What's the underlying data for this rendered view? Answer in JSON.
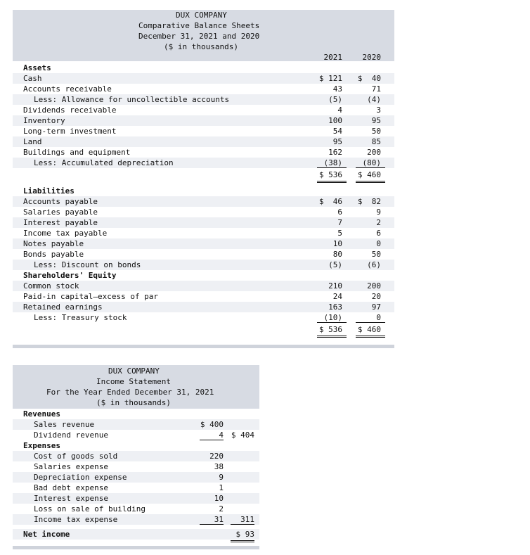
{
  "balance_sheet": {
    "company": "DUX COMPANY",
    "title": "Comparative Balance Sheets",
    "date": "December 31, 2021 and 2020",
    "units": "($ in thousands)",
    "col_2021": "2021",
    "col_2020": "2020",
    "assets_heading": "Assets",
    "assets": [
      {
        "label": "Cash",
        "y2021": "$ 121",
        "y2020": "$  40"
      },
      {
        "label": "Accounts receivable",
        "y2021": "43",
        "y2020": "71"
      },
      {
        "label": "Less: Allowance for uncollectible accounts",
        "y2021": "(5)",
        "y2020": "(4)"
      },
      {
        "label": "Dividends receivable",
        "y2021": "4",
        "y2020": "3"
      },
      {
        "label": "Inventory",
        "y2021": "100",
        "y2020": "95"
      },
      {
        "label": "Long-term investment",
        "y2021": "54",
        "y2020": "50"
      },
      {
        "label": "Land",
        "y2021": "95",
        "y2020": "85"
      },
      {
        "label": "Buildings and equipment",
        "y2021": "162",
        "y2020": "200"
      },
      {
        "label": "Less: Accumulated depreciation",
        "y2021": "(38)",
        "y2020": "(80)"
      }
    ],
    "assets_total": {
      "y2021": "$ 536",
      "y2020": "$ 460"
    },
    "liabilities_heading": "Liabilities",
    "liabilities": [
      {
        "label": "Accounts payable",
        "y2021": "$  46",
        "y2020": "$  82"
      },
      {
        "label": "Salaries payable",
        "y2021": "6",
        "y2020": "9"
      },
      {
        "label": "Interest payable",
        "y2021": "7",
        "y2020": "2"
      },
      {
        "label": "Income tax payable",
        "y2021": "5",
        "y2020": "6"
      },
      {
        "label": "Notes payable",
        "y2021": "10",
        "y2020": "0"
      },
      {
        "label": "Bonds payable",
        "y2021": "80",
        "y2020": "50"
      },
      {
        "label": "Less: Discount on bonds",
        "y2021": "(5)",
        "y2020": "(6)"
      }
    ],
    "equity_heading": "Shareholders' Equity",
    "equity": [
      {
        "label": "Common stock",
        "y2021": "210",
        "y2020": "200"
      },
      {
        "label": "Paid-in capital—excess of par",
        "y2021": "24",
        "y2020": "20"
      },
      {
        "label": "Retained earnings",
        "y2021": "163",
        "y2020": "97"
      },
      {
        "label": "Less: Treasury stock",
        "y2021": "(10)",
        "y2020": "0"
      }
    ],
    "liab_equity_total": {
      "y2021": "$ 536",
      "y2020": "$ 460"
    }
  },
  "income_statement": {
    "company": "DUX COMPANY",
    "title": "Income Statement",
    "period": "For the Year Ended December 31, 2021",
    "units": "($ in thousands)",
    "revenues_heading": "Revenues",
    "revenues": [
      {
        "label": "Sales revenue",
        "amount": "$ 400",
        "total": ""
      },
      {
        "label": "Dividend revenue",
        "amount": "4",
        "total": "$ 404"
      }
    ],
    "expenses_heading": "Expenses",
    "expenses": [
      {
        "label": "Cost of goods sold",
        "amount": "220",
        "total": ""
      },
      {
        "label": "Salaries expense",
        "amount": "38",
        "total": ""
      },
      {
        "label": "Depreciation expense",
        "amount": "9",
        "total": ""
      },
      {
        "label": "Bad debt expense",
        "amount": "1",
        "total": ""
      },
      {
        "label": "Interest expense",
        "amount": "10",
        "total": ""
      },
      {
        "label": "Loss on sale of building",
        "amount": "2",
        "total": ""
      },
      {
        "label": "Income tax expense",
        "amount": "31",
        "total": "311"
      }
    ],
    "net_income_label": "Net income",
    "net_income": "$ 93"
  }
}
